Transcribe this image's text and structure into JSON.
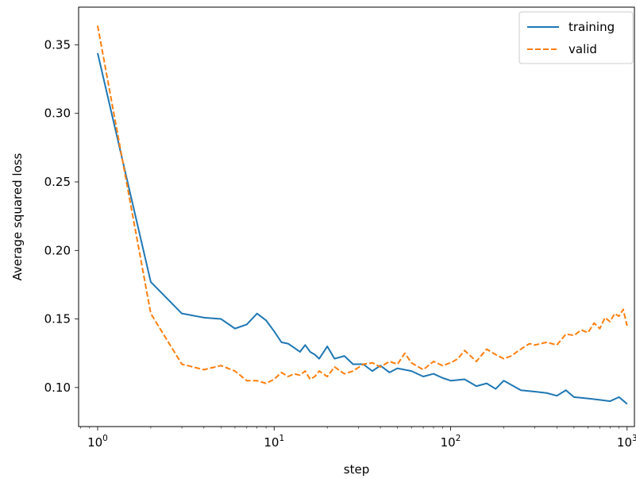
{
  "chart_data": {
    "type": "line",
    "title": "",
    "xlabel": "step",
    "ylabel": "Average squared loss",
    "xscale": "log",
    "xlim": [
      0.78,
      1100
    ],
    "ylim": [
      0.0715,
      0.3775
    ],
    "grid": false,
    "legend_position": "top-right",
    "x_ticks": [
      {
        "value": 1,
        "base": "10",
        "exp": "0"
      },
      {
        "value": 10,
        "base": "10",
        "exp": "1"
      },
      {
        "value": 100,
        "base": "10",
        "exp": "2"
      },
      {
        "value": 1000,
        "base": "10",
        "exp": "3"
      }
    ],
    "y_ticks": [
      {
        "value": 0.1,
        "label": "0.10"
      },
      {
        "value": 0.15,
        "label": "0.15"
      },
      {
        "value": 0.2,
        "label": "0.20"
      },
      {
        "value": 0.25,
        "label": "0.25"
      },
      {
        "value": 0.3,
        "label": "0.30"
      },
      {
        "value": 0.35,
        "label": "0.35"
      }
    ],
    "series": [
      {
        "name": "training",
        "color": "#1f77b4",
        "dash": "solid",
        "x": [
          1,
          2,
          3,
          4,
          5,
          6,
          7,
          8,
          9,
          10,
          11,
          12,
          13,
          14,
          15,
          16,
          17,
          18,
          20,
          22,
          25,
          28,
          32,
          36,
          40,
          45,
          50,
          60,
          70,
          80,
          90,
          100,
          120,
          140,
          160,
          180,
          200,
          250,
          300,
          350,
          400,
          450,
          500,
          600,
          700,
          800,
          900,
          1000
        ],
        "y": [
          0.344,
          0.177,
          0.154,
          0.151,
          0.15,
          0.143,
          0.146,
          0.154,
          0.149,
          0.141,
          0.133,
          0.132,
          0.129,
          0.126,
          0.131,
          0.126,
          0.124,
          0.121,
          0.13,
          0.121,
          0.123,
          0.117,
          0.117,
          0.112,
          0.116,
          0.111,
          0.114,
          0.112,
          0.108,
          0.11,
          0.107,
          0.105,
          0.106,
          0.101,
          0.103,
          0.099,
          0.105,
          0.098,
          0.097,
          0.096,
          0.094,
          0.098,
          0.093,
          0.092,
          0.091,
          0.09,
          0.093,
          0.088
        ]
      },
      {
        "name": "valid",
        "color": "#ff7f0e",
        "dash": "dashed",
        "x": [
          1,
          2,
          3,
          4,
          5,
          6,
          7,
          8,
          9,
          10,
          11,
          12,
          13,
          14,
          15,
          16,
          17,
          18,
          20,
          22,
          25,
          28,
          32,
          36,
          40,
          45,
          50,
          55,
          60,
          70,
          80,
          90,
          100,
          110,
          120,
          140,
          160,
          180,
          200,
          220,
          250,
          280,
          300,
          350,
          400,
          450,
          500,
          550,
          600,
          650,
          700,
          750,
          800,
          850,
          900,
          950,
          1000
        ],
        "y": [
          0.364,
          0.154,
          0.117,
          0.113,
          0.116,
          0.112,
          0.105,
          0.105,
          0.103,
          0.106,
          0.111,
          0.108,
          0.11,
          0.109,
          0.112,
          0.106,
          0.108,
          0.112,
          0.108,
          0.115,
          0.11,
          0.112,
          0.117,
          0.118,
          0.115,
          0.119,
          0.117,
          0.125,
          0.118,
          0.113,
          0.119,
          0.116,
          0.118,
          0.121,
          0.127,
          0.119,
          0.128,
          0.124,
          0.121,
          0.123,
          0.128,
          0.132,
          0.131,
          0.133,
          0.131,
          0.139,
          0.138,
          0.142,
          0.14,
          0.147,
          0.143,
          0.151,
          0.148,
          0.154,
          0.152,
          0.157,
          0.145
        ]
      }
    ]
  }
}
